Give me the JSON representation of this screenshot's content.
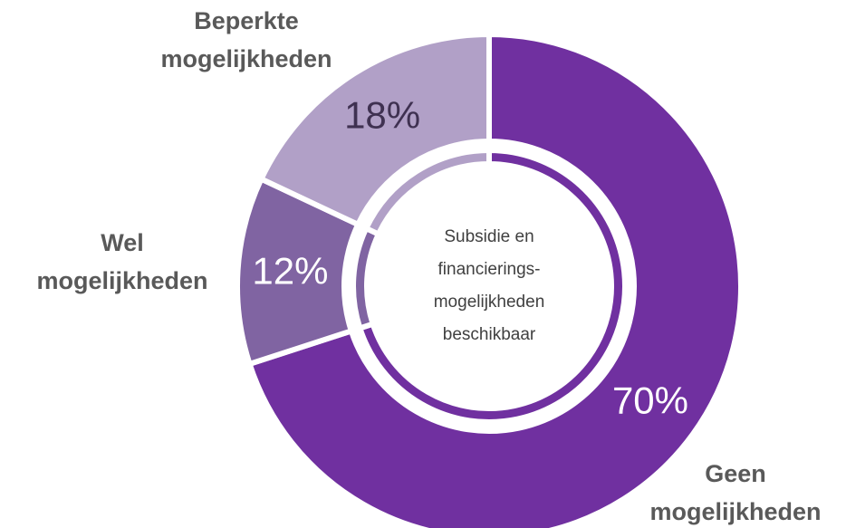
{
  "chart_data": {
    "type": "donut",
    "categories": [
      "Geen mogelijkheden",
      "Wel mogelijkheden",
      "Beperkte mogelijkheden"
    ],
    "values": [
      70,
      12,
      18
    ],
    "value_labels": [
      "70%",
      "12%",
      "18%"
    ],
    "colors": [
      "#7030a0",
      "#8064a2",
      "#b1a0c7"
    ],
    "label_colors": [
      "#ffffff",
      "#ffffff",
      "#3f3151"
    ],
    "center_label": [
      "Subsidie en",
      "financierings-",
      "mogelijkheden",
      "beschikbaar"
    ]
  }
}
